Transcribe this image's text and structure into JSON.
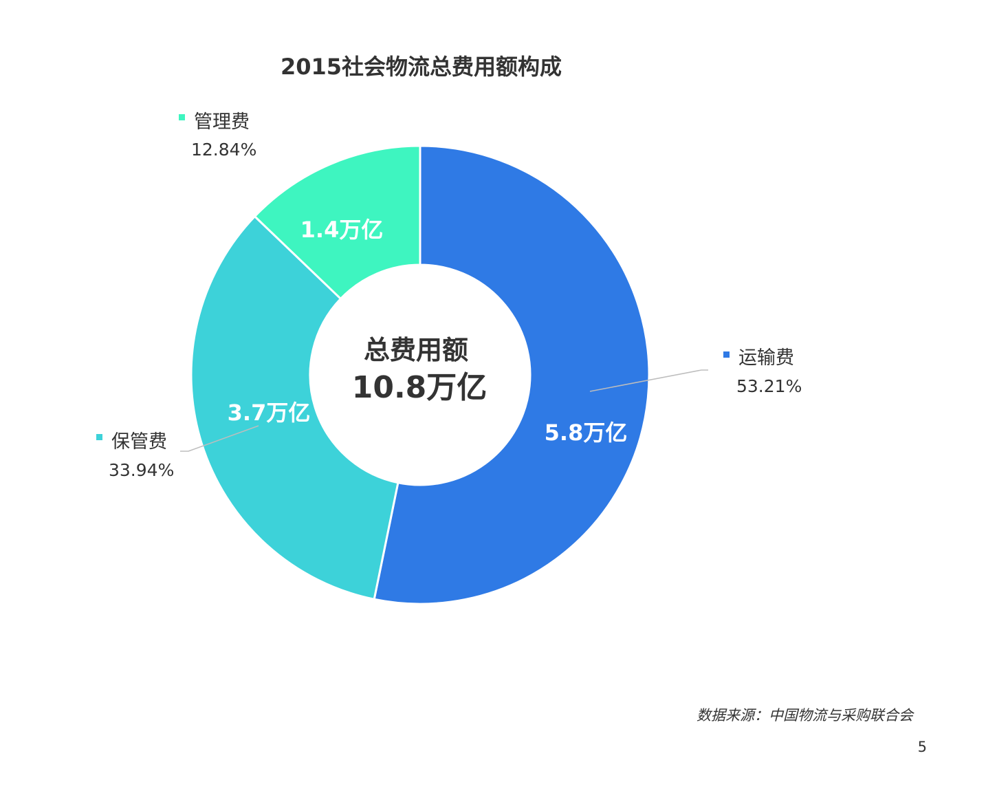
{
  "chart_data": {
    "type": "pie",
    "variant": "donut",
    "title": "2015社会物流总费用额构成",
    "center_label": {
      "line1": "总费用额",
      "line2": "10.8万亿"
    },
    "slices": [
      {
        "name": "运输费",
        "percent": "53.21%",
        "share": 53.21,
        "value_label": "5.8万亿",
        "color": "#2f7ae5"
      },
      {
        "name": "保管费",
        "percent": "33.94%",
        "share": 33.94,
        "value_label": "3.7万亿",
        "color": "#3dd2d9"
      },
      {
        "name": "管理费",
        "percent": "12.84%",
        "share": 12.84,
        "value_label": "1.4万亿",
        "color": "#3ef5c0"
      }
    ],
    "legend_placement": "outside labels"
  },
  "footer": {
    "source": "数据来源：中国物流与采购联合会",
    "page_number": "5"
  }
}
